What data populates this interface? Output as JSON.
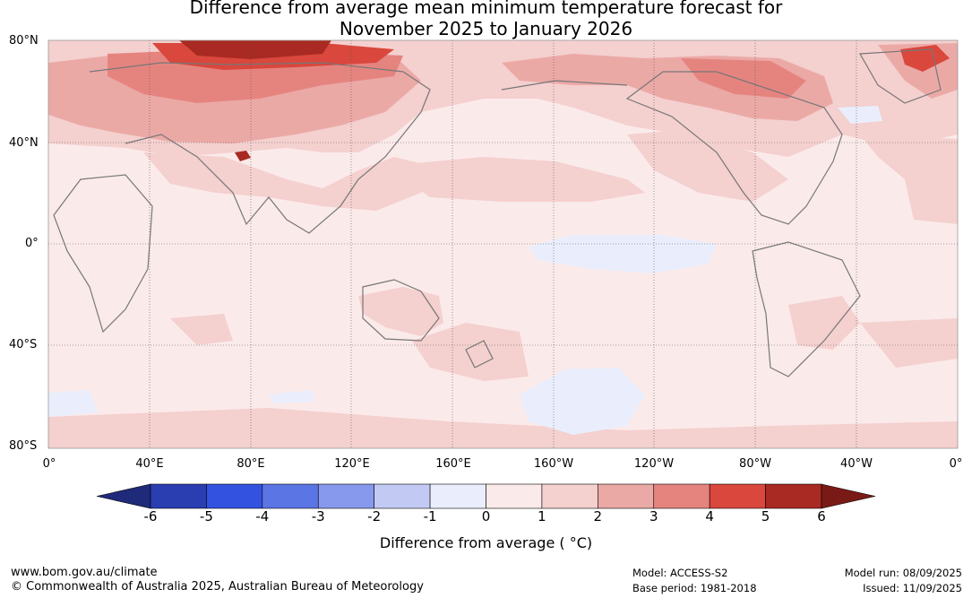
{
  "title_line1": "Difference from average mean minimum temperature forecast for",
  "title_line2": "November 2025 to January 2026",
  "lat_labels": [
    "80°N",
    "40°N",
    "0°",
    "40°S",
    "80°S"
  ],
  "lon_labels": [
    "0°",
    "40°E",
    "80°E",
    "120°E",
    "160°E",
    "160°W",
    "120°W",
    "80°W",
    "40°W",
    "0°"
  ],
  "colorbar": {
    "ticks": [
      "-6",
      "-5",
      "-4",
      "-3",
      "-2",
      "-1",
      "0",
      "1",
      "2",
      "3",
      "4",
      "5",
      "6"
    ],
    "label": "Difference from average ( °C)",
    "colors": [
      "#1f2a7a",
      "#2a3eb1",
      "#3452e0",
      "#5b75e5",
      "#8799ec",
      "#c2caf4",
      "#eaeefc",
      "#fbeaea",
      "#f4d0cf",
      "#eba9a6",
      "#e5847f",
      "#d9473d",
      "#a82a22",
      "#7a1a16"
    ]
  },
  "footer": {
    "website": "www.bom.gov.au/climate",
    "copyright": "© Commonwealth of Australia 2025, Australian Bureau of Meteorology",
    "model": "Model: ACCESS-S2",
    "base_period": "Base period: 1981-2018",
    "model_run": "Model run: 08/09/2025",
    "issued": "Issued: 11/09/2025"
  }
}
